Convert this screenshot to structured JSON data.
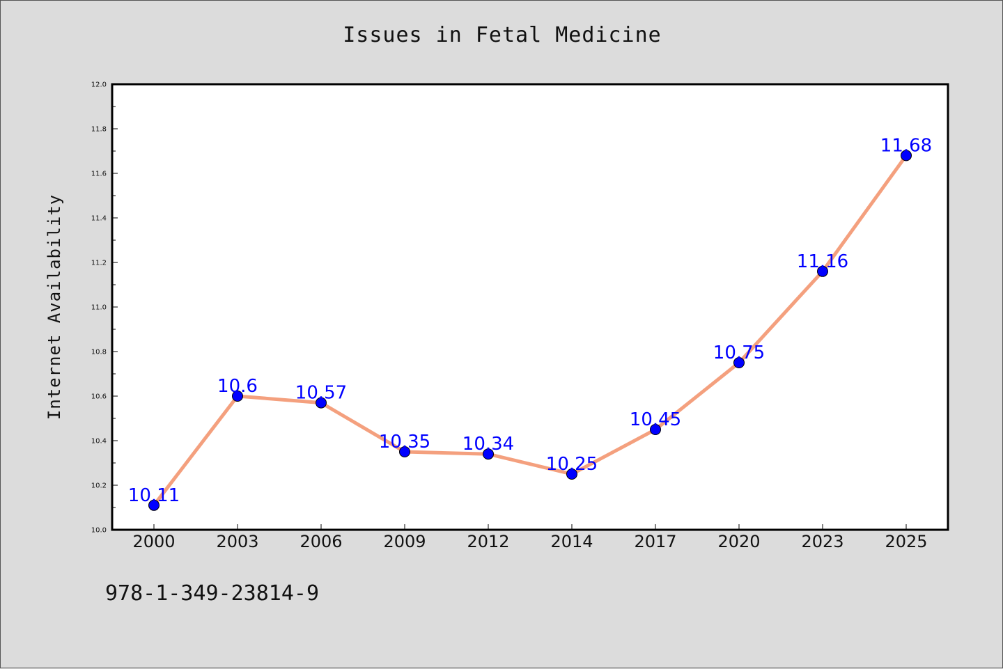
{
  "chart_data": {
    "type": "line",
    "title": "Issues in Fetal Medicine",
    "xlabel": "",
    "ylabel": "Internet Availability",
    "categories": [
      "2000",
      "2003",
      "2006",
      "2009",
      "2012",
      "2014",
      "2017",
      "2020",
      "2023",
      "2025"
    ],
    "values": [
      10.11,
      10.6,
      10.57,
      10.35,
      10.34,
      10.25,
      10.45,
      10.75,
      11.16,
      11.68
    ],
    "data_labels": [
      "10.11",
      "10.6",
      "10.57",
      "10.35",
      "10.34",
      "10.25",
      "10.45",
      "10.75",
      "11.16",
      "11.68"
    ],
    "ylim": [
      10.0,
      12.0
    ],
    "y_ticks": [
      "10.0",
      "10.2",
      "10.4",
      "10.6",
      "10.8",
      "11.0",
      "11.2",
      "11.4",
      "11.6",
      "11.8",
      "12.0"
    ],
    "grid": false,
    "legend": "none",
    "colors": {
      "line": "#f4a07e",
      "marker": "#0000ff",
      "labels": "#0000ff",
      "background": "#dcdcdc",
      "plot_background": "#ffffff"
    }
  },
  "footer": {
    "code": "978-1-349-23814-9"
  }
}
